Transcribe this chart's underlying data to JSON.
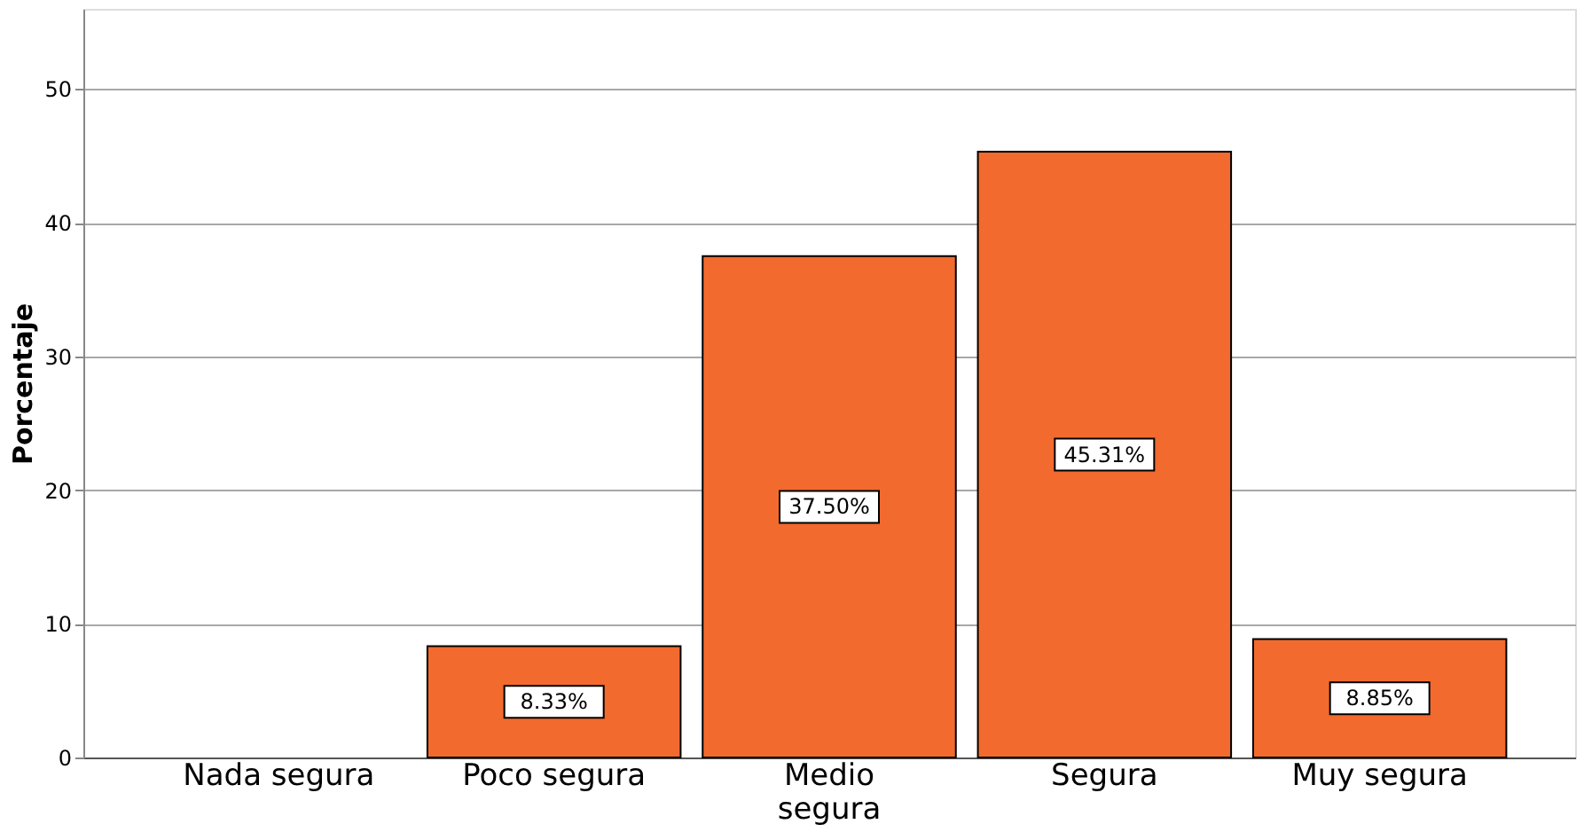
{
  "chart_data": {
    "type": "bar",
    "ylabel": "Porcentaje",
    "categories": [
      "Nada segura",
      "Poco segura",
      "Medio segura",
      "Segura",
      "Muy segura"
    ],
    "values": [
      0,
      8.33,
      37.5,
      45.31,
      8.85
    ],
    "value_labels": [
      null,
      "8.33%",
      "37.50%",
      "45.31%",
      "8.85%"
    ],
    "color": "#f26a2e",
    "ylim": [
      0,
      56
    ],
    "yticks": [
      0,
      10,
      20,
      30,
      40,
      50
    ],
    "grid": "y"
  }
}
